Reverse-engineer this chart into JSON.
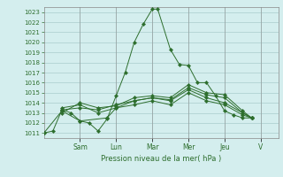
{
  "background_color": "#d4eeee",
  "grid_color": "#aacccc",
  "line_color": "#2d6e2d",
  "marker_color": "#2d6e2d",
  "xlabel": "Pression niveau de la mer( hPa )",
  "ylim": [
    1010.5,
    1023.5
  ],
  "yticks": [
    1011,
    1012,
    1013,
    1014,
    1015,
    1016,
    1017,
    1018,
    1019,
    1020,
    1021,
    1022,
    1023
  ],
  "x_day_labels": [
    "Sam",
    "Lun",
    "Mar",
    "Mer",
    "Jeu",
    "V"
  ],
  "x_day_positions": [
    2.0,
    4.0,
    6.0,
    8.0,
    10.0,
    12.0
  ],
  "xlim": [
    0,
    13.0
  ],
  "series": [
    {
      "x": [
        0.0,
        0.5,
        1.0,
        1.5,
        2.0,
        2.5,
        3.0,
        3.5,
        4.0,
        4.5,
        5.0,
        5.5,
        6.0,
        6.3,
        7.0,
        7.5,
        8.0,
        8.5,
        9.0,
        9.5,
        10.0,
        10.5,
        11.0,
        11.5
      ],
      "y": [
        1011.0,
        1011.2,
        1013.3,
        1013.0,
        1012.2,
        1012.0,
        1011.2,
        1012.4,
        1014.7,
        1017.0,
        1020.0,
        1021.8,
        1023.3,
        1023.3,
        1019.3,
        1017.8,
        1017.7,
        1016.0,
        1016.0,
        1014.7,
        1013.2,
        1012.8,
        1012.5,
        1012.5
      ]
    },
    {
      "x": [
        1.0,
        2.0,
        3.0,
        4.0,
        5.0,
        6.0,
        7.0,
        8.0,
        9.0,
        10.0,
        11.0,
        11.5
      ],
      "y": [
        1013.0,
        1014.0,
        1013.5,
        1013.7,
        1014.5,
        1014.7,
        1014.5,
        1015.8,
        1015.0,
        1014.8,
        1013.2,
        1012.5
      ]
    },
    {
      "x": [
        1.0,
        2.0,
        3.0,
        4.0,
        5.0,
        6.0,
        7.0,
        8.0,
        9.0,
        10.0,
        11.0,
        11.5
      ],
      "y": [
        1013.3,
        1013.5,
        1013.3,
        1013.8,
        1014.2,
        1014.5,
        1014.3,
        1015.5,
        1014.8,
        1014.5,
        1013.0,
        1012.5
      ]
    },
    {
      "x": [
        1.0,
        2.0,
        3.0,
        4.0,
        5.0,
        6.0,
        7.0,
        8.0,
        9.0,
        10.0,
        11.0,
        11.5
      ],
      "y": [
        1013.5,
        1013.8,
        1013.0,
        1013.5,
        1013.8,
        1014.2,
        1013.8,
        1015.0,
        1014.2,
        1013.8,
        1012.8,
        1012.5
      ]
    },
    {
      "x": [
        0.0,
        1.0,
        2.0,
        3.5,
        4.0,
        5.0,
        6.0,
        7.0,
        8.0,
        9.0,
        10.0,
        11.0,
        11.5
      ],
      "y": [
        1011.0,
        1013.2,
        1012.2,
        1012.5,
        1013.5,
        1014.2,
        1014.5,
        1014.2,
        1015.3,
        1014.5,
        1014.0,
        1013.0,
        1012.5
      ]
    }
  ]
}
